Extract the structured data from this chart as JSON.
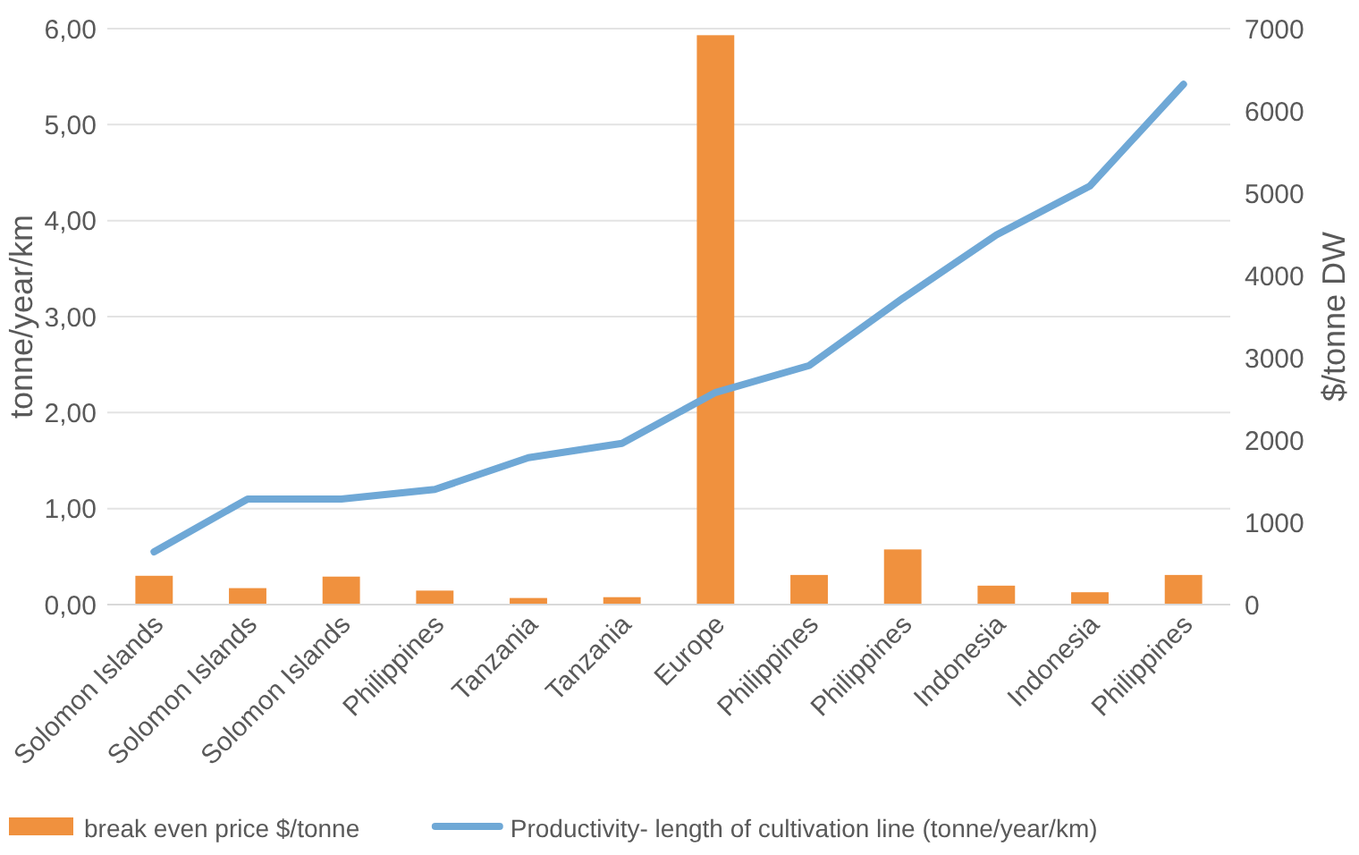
{
  "chart_data": {
    "type": "bar",
    "ylabel": "tonne/year/km",
    "y2label": "$/tonne DW",
    "categories": [
      "Solomon Islands",
      "Solomon Islands",
      "Solomon Islands",
      "Philippines",
      "Tanzania",
      "Tanzania",
      "Europe",
      "Philippines",
      "Philippines",
      "Indonesia",
      "Indonesia",
      "Philippines"
    ],
    "series": [
      {
        "name": "break even price $/tonne",
        "type": "bar",
        "axis": "y2",
        "color": "#f0913e",
        "values": [
          350,
          200,
          340,
          170,
          80,
          90,
          6920,
          360,
          670,
          230,
          150,
          360
        ]
      },
      {
        "name": "Productivity- length of cultivation line (tonne/year/km)",
        "type": "line",
        "color": "#6fa8d6",
        "values": [
          0.55,
          1.1,
          1.1,
          1.2,
          1.53,
          1.68,
          2.21,
          2.49,
          3.19,
          3.85,
          4.36,
          5.42
        ]
      }
    ],
    "ylim": [
      0,
      6
    ],
    "yticks": [
      {
        "value": 0,
        "label": "0,00"
      },
      {
        "value": 1,
        "label": "1,00"
      },
      {
        "value": 2,
        "label": "2,00"
      },
      {
        "value": 3,
        "label": "3,00"
      },
      {
        "value": 4,
        "label": "4,00"
      },
      {
        "value": 5,
        "label": "5,00"
      },
      {
        "value": 6,
        "label": "6,00"
      }
    ],
    "y2lim": [
      0,
      7000
    ],
    "y2ticks": [
      0,
      1000,
      2000,
      3000,
      4000,
      5000,
      6000,
      7000
    ],
    "grid": "y",
    "legend": "bottom",
    "marker": "none",
    "line_style": "solid"
  }
}
